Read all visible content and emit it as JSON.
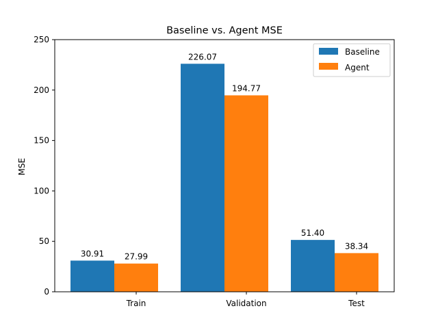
{
  "chart_data": {
    "type": "bar",
    "title": "Baseline vs. Agent MSE",
    "xlabel": "",
    "ylabel": "MSE",
    "categories": [
      "Train",
      "Validation",
      "Test"
    ],
    "series": [
      {
        "name": "Baseline",
        "color": "#1f77b4",
        "values": [
          30.91,
          226.07,
          51.4
        ],
        "labels": [
          "30.91",
          "226.07",
          "51.40"
        ]
      },
      {
        "name": "Agent",
        "color": "#ff7f0e",
        "values": [
          27.99,
          194.77,
          38.34
        ],
        "labels": [
          "27.99",
          "194.77",
          "38.34"
        ]
      }
    ],
    "ylim": [
      0,
      250
    ],
    "yticks": [
      0,
      50,
      100,
      150,
      200,
      250
    ],
    "ytick_labels": [
      "0",
      "50",
      "100",
      "150",
      "200",
      "250"
    ],
    "grid": false,
    "legend_position": "top-right"
  }
}
